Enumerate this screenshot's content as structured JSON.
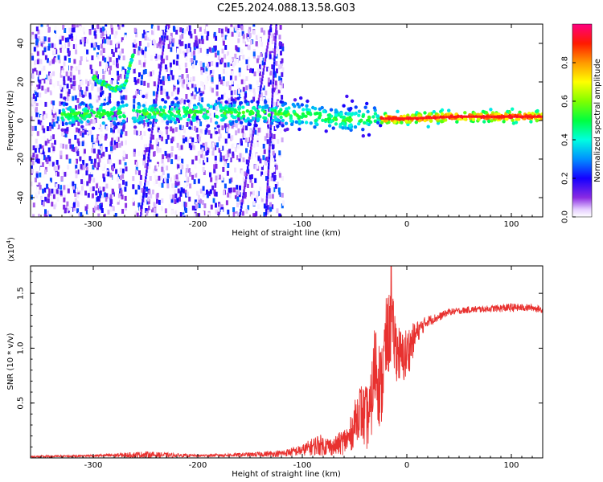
{
  "title": "C2E5.2024.088.13.58.G03",
  "chart_data": [
    {
      "type": "heatmap",
      "xlabel": "Height of straight line (km)",
      "ylabel": "Frequency (Hz)",
      "xlim": [
        -360,
        130
      ],
      "ylim": [
        -50,
        50
      ],
      "x_ticks": [
        -300,
        -200,
        -100,
        0,
        100
      ],
      "y_ticks": [
        -40,
        -20,
        0,
        20,
        40
      ],
      "x_tick_labels": [
        "-300",
        "-200",
        "-100",
        "0",
        "100"
      ],
      "y_tick_labels": [
        "-40",
        "-20",
        "0",
        "20",
        "40"
      ],
      "colorbar": {
        "label": "Normalized spectral amplitude",
        "range": [
          0,
          1
        ],
        "ticks": [
          0.0,
          0.2,
          0.4,
          0.6,
          0.8
        ],
        "tick_labels": [
          "0.0",
          "0.2",
          "0.4",
          "0.6",
          "0.8"
        ],
        "colormap": "rainbow"
      },
      "features": {
        "carrier_track": [
          [
            -330,
            3
          ],
          [
            -250,
            4
          ],
          [
            -150,
            4
          ],
          [
            -100,
            3
          ],
          [
            -60,
            0
          ],
          [
            -30,
            1
          ],
          [
            0,
            1
          ],
          [
            50,
            2
          ],
          [
            100,
            2
          ],
          [
            130,
            2
          ]
        ],
        "chirp_track": [
          [
            -300,
            22
          ],
          [
            -280,
            16
          ],
          [
            -270,
            18
          ],
          [
            -262,
            34
          ]
        ],
        "dropout_x": [
          -265,
          -150
        ]
      }
    },
    {
      "type": "line",
      "xlabel": "Height of straight line (km)",
      "ylabel": "SNR (10 * v/v)",
      "ylabel_multiplier": "(x10",
      "ylabel_multiplier_exp": "4",
      "ylabel_multiplier_close": ")",
      "xlim": [
        -360,
        130
      ],
      "ylim": [
        0,
        1.75
      ],
      "x_ticks": [
        -300,
        -200,
        -100,
        0,
        100
      ],
      "y_ticks": [
        0.5,
        1.0,
        1.5
      ],
      "x_tick_labels": [
        "-300",
        "-200",
        "-100",
        "0",
        "100"
      ],
      "y_tick_labels": [
        "0.5",
        "1.0",
        "1.5"
      ],
      "color": "#e8312f",
      "series": [
        {
          "x": [
            -360,
            -300,
            -250,
            -200,
            -150,
            -120,
            -100,
            -85,
            -70,
            -55,
            -45,
            -40,
            -35,
            -30,
            -25,
            -20,
            -15,
            -10,
            -5,
            0,
            10,
            20,
            30,
            40,
            60,
            80,
            100,
            120,
            130
          ],
          "mean": [
            0.01,
            0.02,
            0.03,
            0.02,
            0.03,
            0.04,
            0.07,
            0.12,
            0.1,
            0.18,
            0.45,
            0.35,
            0.4,
            0.9,
            0.6,
            1.05,
            1.2,
            1.0,
            0.9,
            0.95,
            1.15,
            1.25,
            1.28,
            1.33,
            1.35,
            1.36,
            1.37,
            1.37,
            1.35
          ],
          "amp": [
            0.01,
            0.01,
            0.03,
            0.01,
            0.02,
            0.03,
            0.05,
            0.1,
            0.08,
            0.15,
            0.25,
            0.3,
            0.3,
            0.45,
            0.4,
            0.4,
            0.35,
            0.3,
            0.25,
            0.25,
            0.1,
            0.05,
            0.04,
            0.03,
            0.03,
            0.03,
            0.04,
            0.03,
            0.03
          ]
        }
      ],
      "peak": {
        "x": -15,
        "y": 1.75
      }
    }
  ]
}
